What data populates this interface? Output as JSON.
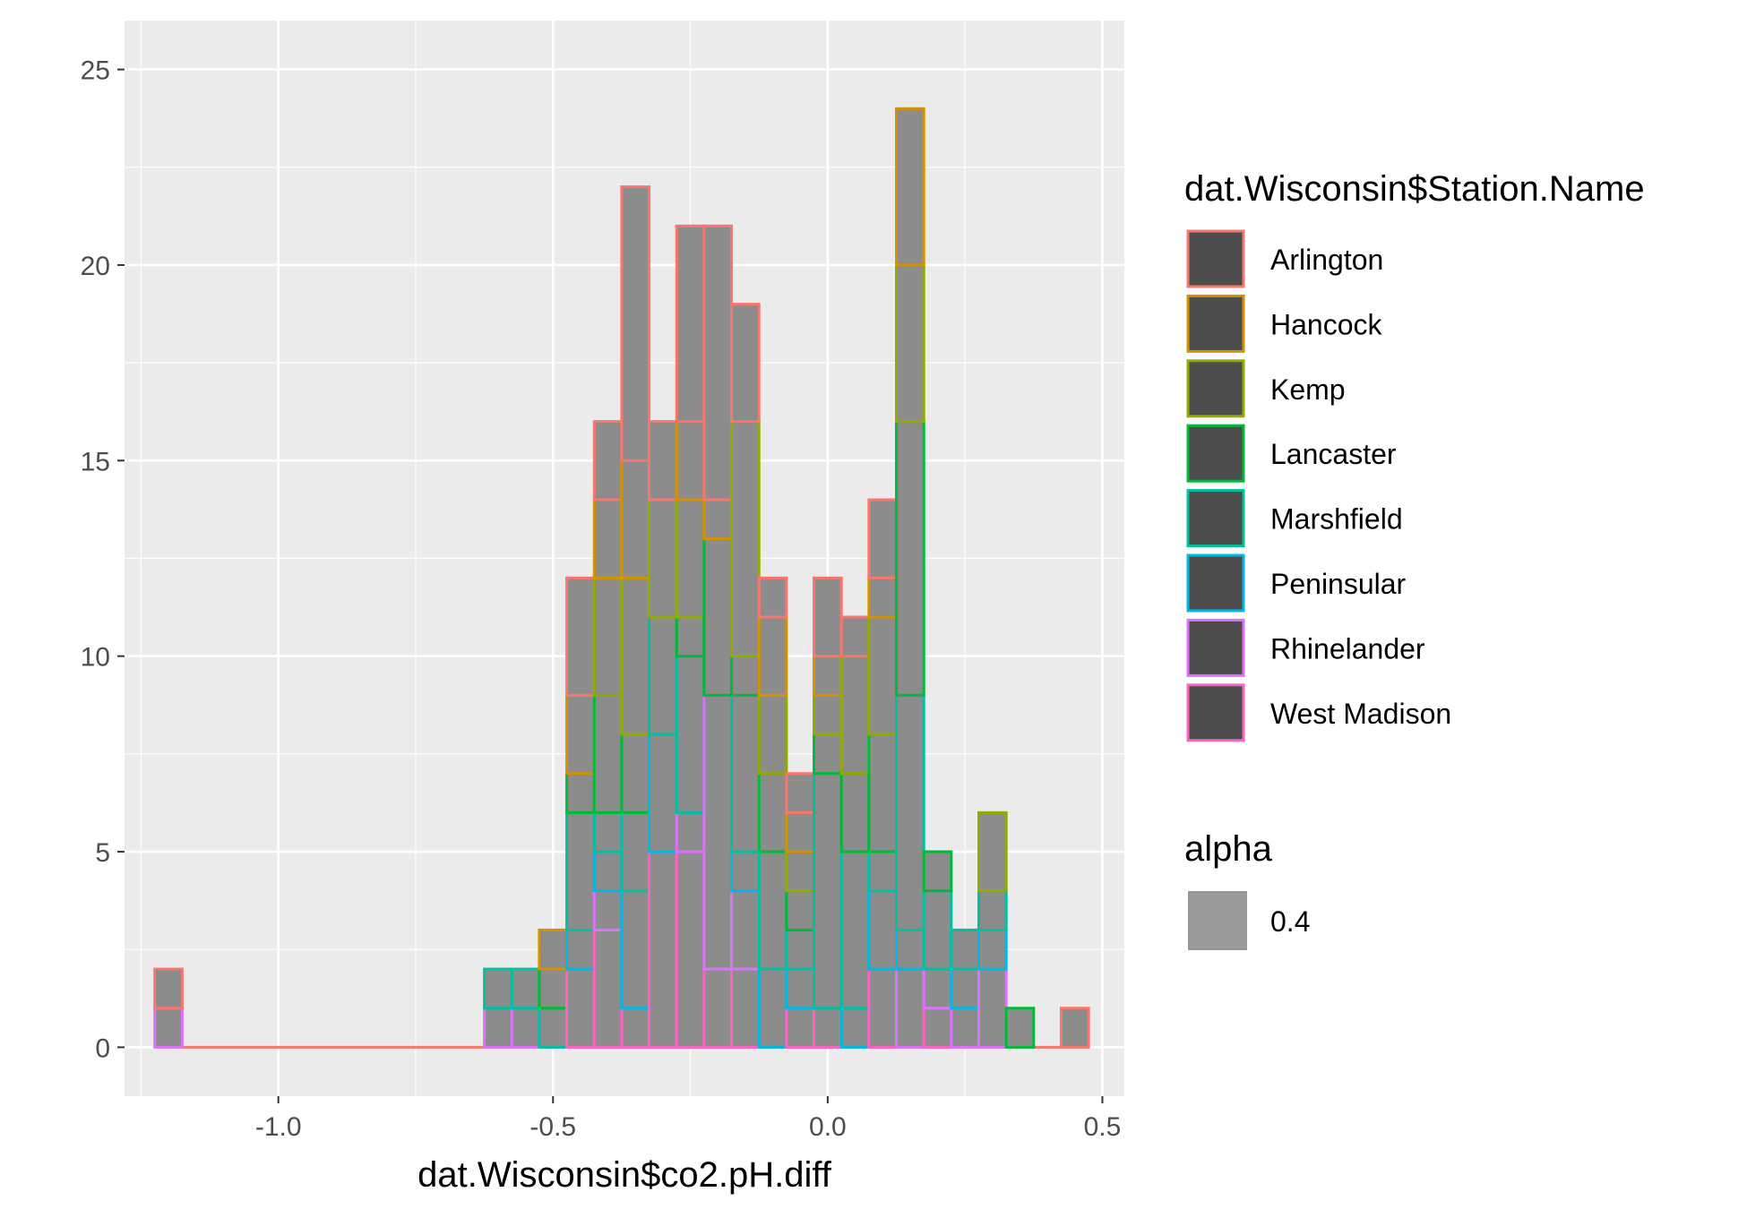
{
  "chart_data": {
    "type": "bar",
    "subtype": "stacked-histogram",
    "xlabel": "dat.Wisconsin$co2.pH.diff",
    "ylabel": "",
    "xlim": [
      -1.28,
      0.54
    ],
    "ylim": [
      -1.25,
      26.25
    ],
    "x_ticks": [
      -1.0,
      -0.5,
      0.0,
      0.5
    ],
    "x_tick_labels": [
      "-1.0",
      "-0.5",
      "0.0",
      "0.5"
    ],
    "y_ticks": [
      0,
      5,
      10,
      15,
      20,
      25
    ],
    "y_tick_labels": [
      "0",
      "5",
      "10",
      "15",
      "20",
      "25"
    ],
    "grid": true,
    "bin_width": 0.05,
    "bins_start": [
      -1.225,
      -0.625,
      -0.575,
      -0.525,
      -0.475,
      -0.425,
      -0.375,
      -0.325,
      -0.275,
      -0.225,
      -0.175,
      -0.125,
      -0.075,
      -0.025,
      0.025,
      0.075,
      0.125,
      0.175,
      0.225,
      0.275,
      0.325,
      0.425
    ],
    "series": [
      {
        "name": "West Madison",
        "color": "#FF61C3",
        "values": [
          0,
          0,
          0,
          0,
          2,
          3,
          1,
          5,
          5,
          2,
          2,
          0,
          1,
          1,
          0,
          2,
          0,
          1,
          0,
          0,
          0,
          0
        ]
      },
      {
        "name": "Rhinelander",
        "color": "#DB72FB",
        "values": [
          1,
          1,
          1,
          0,
          0,
          1,
          0,
          0,
          1,
          7,
          2,
          0,
          0,
          0,
          0,
          0,
          2,
          1,
          1,
          2,
          0,
          0
        ]
      },
      {
        "name": "Peninsular",
        "color": "#00B9E3",
        "values": [
          0,
          0,
          0,
          0,
          1,
          1,
          3,
          3,
          0,
          0,
          1,
          2,
          1,
          0,
          1,
          2,
          1,
          0,
          1,
          1,
          0,
          0
        ]
      },
      {
        "name": "Marshfield",
        "color": "#00C19F",
        "values": [
          0,
          1,
          1,
          1,
          3,
          1,
          2,
          3,
          4,
          0,
          4,
          3,
          1,
          6,
          4,
          1,
          6,
          2,
          1,
          1,
          0,
          0
        ]
      },
      {
        "name": "Lancaster",
        "color": "#00BA38",
        "values": [
          0,
          0,
          0,
          1,
          1,
          3,
          2,
          0,
          1,
          4,
          1,
          2,
          1,
          1,
          2,
          3,
          7,
          1,
          0,
          0,
          1,
          0
        ]
      },
      {
        "name": "Kemp",
        "color": "#93AA00",
        "values": [
          0,
          0,
          0,
          0,
          0,
          3,
          4,
          3,
          3,
          0,
          6,
          2,
          1,
          1,
          3,
          3,
          4,
          0,
          0,
          2,
          0,
          0
        ]
      },
      {
        "name": "Hancock",
        "color": "#D39200",
        "values": [
          0,
          0,
          0,
          1,
          2,
          2,
          3,
          0,
          2,
          1,
          0,
          2,
          1,
          1,
          0,
          1,
          4,
          0,
          0,
          0,
          0,
          0
        ]
      },
      {
        "name": "Arlington",
        "color": "#F8766D",
        "values": [
          1,
          0,
          0,
          0,
          3,
          2,
          7,
          2,
          5,
          7,
          3,
          1,
          1,
          2,
          1,
          2,
          0,
          0,
          0,
          0,
          0,
          1
        ]
      }
    ],
    "baseline_line": {
      "from": -1.175,
      "to": 0.425,
      "color": "#F8766D"
    },
    "legend_placement": "right",
    "legends": [
      {
        "title": "dat.Wisconsin$Station.Name",
        "keys": [
          {
            "label": "Arlington",
            "color": "#F8766D"
          },
          {
            "label": "Hancock",
            "color": "#D39200"
          },
          {
            "label": "Kemp",
            "color": "#93AA00"
          },
          {
            "label": "Lancaster",
            "color": "#00BA38"
          },
          {
            "label": "Marshfield",
            "color": "#00C19F"
          },
          {
            "label": "Peninsular",
            "color": "#00B9E3"
          },
          {
            "label": "Rhinelander",
            "color": "#DB72FB"
          },
          {
            "label": "West Madison",
            "color": "#FF61C3"
          }
        ]
      },
      {
        "title": "alpha",
        "keys": [
          {
            "label": "0.4",
            "color": "#999999"
          }
        ]
      }
    ],
    "colors": {
      "panel_background": "#EBEBEB",
      "grid": "#FFFFFF",
      "bar_fill": "#8C8C8C",
      "legend_key_fill": "#4D4D4D",
      "alpha_key_fill": "#999999"
    }
  }
}
